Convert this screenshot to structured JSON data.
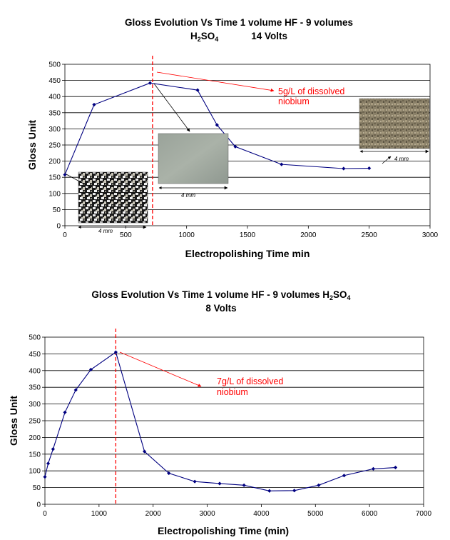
{
  "chart_data": [
    {
      "type": "line",
      "title_parts": {
        "line1": "Gloss Evolution Vs Time   1 volume HF - 9 volumes",
        "line2_a": "H",
        "line2_sub1": "2",
        "line2_b": "SO",
        "line2_sub2": "4",
        "line2_c": "14 Volts"
      },
      "xlabel": "Electropolishing Time min",
      "ylabel": "Gloss Unit",
      "xlim": [
        0,
        3000
      ],
      "ylim": [
        0,
        500
      ],
      "x_ticks": [
        0,
        500,
        1000,
        1500,
        2000,
        2500,
        3000
      ],
      "y_ticks": [
        0,
        50,
        100,
        150,
        200,
        250,
        300,
        350,
        400,
        450,
        500
      ],
      "grid": "horizontal",
      "series": [
        {
          "color": "#000080",
          "x": [
            0,
            240,
            700,
            1090,
            1250,
            1400,
            1780,
            2290,
            2500
          ],
          "y": [
            158,
            375,
            442,
            420,
            312,
            245,
            190,
            177,
            178
          ]
        }
      ],
      "vline_x": 720,
      "annotation": {
        "line1": "5g/L of dissolved",
        "line2": "niobium",
        "color": "#ff0000"
      },
      "scale_labels": [
        "4 mm",
        "4 mm",
        "4 mm"
      ]
    },
    {
      "type": "line",
      "title_parts": {
        "line1_a": "Gloss Evolution Vs Time 1 volume HF - 9 volumes H",
        "line1_sub1": "2",
        "line1_b": "SO",
        "line1_sub2": "4",
        "line2": "8 Volts"
      },
      "xlabel": "Electropolishing Time (min)",
      "ylabel": "Gloss Unit",
      "xlim": [
        0,
        7000
      ],
      "ylim": [
        0,
        500
      ],
      "x_ticks": [
        0,
        1000,
        2000,
        3000,
        4000,
        5000,
        6000,
        7000
      ],
      "y_ticks": [
        0,
        50,
        100,
        150,
        200,
        250,
        300,
        350,
        400,
        450,
        500
      ],
      "grid": "horizontal",
      "series": [
        {
          "color": "#000080",
          "x": [
            0,
            60,
            150,
            370,
            570,
            850,
            1310,
            1840,
            2290,
            2770,
            3230,
            3680,
            4150,
            4610,
            5060,
            5530,
            6070,
            6480
          ],
          "y": [
            82,
            122,
            165,
            275,
            342,
            403,
            455,
            158,
            93,
            68,
            62,
            57,
            40,
            41,
            57,
            86,
            106,
            110
          ]
        }
      ],
      "vline_x": 1310,
      "annotation": {
        "line1": "7g/L of dissolved",
        "line2": "niobium",
        "color": "#ff0000"
      }
    }
  ]
}
